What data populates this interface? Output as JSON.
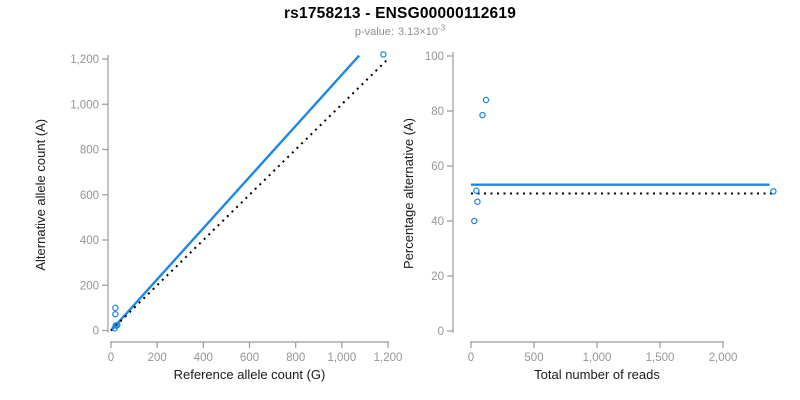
{
  "header": {
    "title": "rs1758213 - ENSG00000112619",
    "pvalue_label": "p-value:",
    "pvalue_base": "3.13×10",
    "pvalue_exp": "-3"
  },
  "colors": {
    "accent_blue": "#1f87e5",
    "dotted_black": "#000000",
    "axis_gray": "#9b9b9b",
    "tick_label_gray": "#959595",
    "axis_title_black": "#1a1a1a",
    "subtitle_gray": "#8f8f8f"
  },
  "chart_data": {
    "type": "scatter",
    "title": "rs1758213 - ENSG00000112619",
    "subtitle_text": "p-value: 3.13×10^-3",
    "legend": "none",
    "grid": "off",
    "plots": [
      {
        "name": "allele-counts",
        "xlabel": "Reference allele count (G)",
        "ylabel": "Alternative allele count (A)",
        "xlim": [
          0,
          1200
        ],
        "ylim": [
          0,
          1200
        ],
        "xticks": [
          0,
          200,
          400,
          600,
          800,
          1000,
          1200
        ],
        "yticks": [
          0,
          200,
          400,
          600,
          800,
          1000,
          1200
        ],
        "point_color": "#1f87e5",
        "points": [
          [
            19,
            100
          ],
          [
            19,
            72
          ],
          [
            21,
            22
          ],
          [
            27,
            24
          ],
          [
            16,
            10
          ],
          [
            1180,
            1220
          ]
        ],
        "lines": [
          {
            "name": "regression-line",
            "style": "solid",
            "color": "#1f87e5",
            "from": [
              0,
              0
            ],
            "to": [
              1075,
              1215
            ]
          },
          {
            "name": "identity-line",
            "style": "dotted",
            "color": "#000000",
            "from": [
              0,
              0
            ],
            "to": [
              1205,
              1205
            ]
          }
        ]
      },
      {
        "name": "percentage-vs-reads",
        "xlabel": "Total number of reads",
        "ylabel": "Percentage alternative (A)",
        "xlim": [
          0,
          2000
        ],
        "ylim": [
          0,
          100
        ],
        "xticks": [
          0,
          500,
          1000,
          1500,
          2000
        ],
        "yticks": [
          0,
          20,
          40,
          60,
          80,
          100
        ],
        "point_color": "#1f87e5",
        "points": [
          [
            119,
            84
          ],
          [
            91,
            78.5
          ],
          [
            43,
            51
          ],
          [
            51,
            47
          ],
          [
            26,
            40
          ],
          [
            2400,
            50.8
          ]
        ],
        "lines": [
          {
            "name": "mean-percentage-line",
            "style": "solid",
            "color": "#1f87e5",
            "from": [
              0,
              53.2
            ],
            "to": [
              2370,
              53.2
            ]
          },
          {
            "name": "expected-50-line",
            "style": "dotted",
            "color": "#000000",
            "from": [
              0,
              50
            ],
            "to": [
              2400,
              50
            ]
          }
        ]
      }
    ]
  }
}
